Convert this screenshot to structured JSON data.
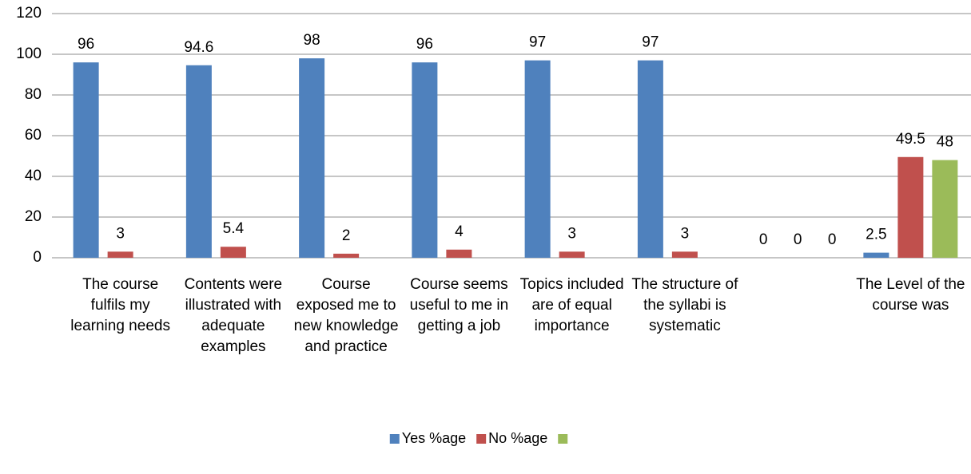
{
  "chart_data": {
    "type": "bar",
    "categories": [
      "The course fulfils my learning needs",
      "Contents were illustrated with adequate examples",
      "Course exposed me to new knowledge and practice",
      "Course seems useful to me in getting a job",
      "Topics included are of equal importance",
      "The structure of the syllabi is systematic",
      null,
      "The Level of the course was"
    ],
    "series": [
      {
        "name": "Yes %age",
        "color": "#4f81bd",
        "values": [
          96,
          94.6,
          98,
          96,
          97,
          97,
          0,
          2.5
        ]
      },
      {
        "name": "No %age",
        "color": "#c0504d",
        "values": [
          3,
          5.4,
          2,
          4,
          3,
          3,
          0,
          49.5
        ]
      },
      {
        "color": "#9bbb59",
        "values": [
          null,
          null,
          null,
          null,
          null,
          null,
          0,
          48
        ]
      }
    ],
    "ylim": [
      0,
      120
    ],
    "yticks": [
      0,
      20,
      40,
      60,
      80,
      100,
      120
    ],
    "grid": true,
    "data_labels": true,
    "legend": "bottom"
  }
}
